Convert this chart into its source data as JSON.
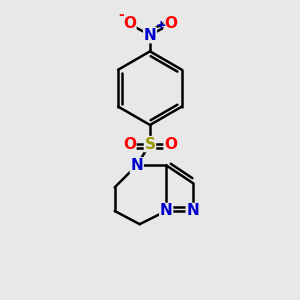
{
  "background_color": "#e8e8e8",
  "bond_color": "#000000",
  "bond_width": 1.8,
  "atom_colors": {
    "C": "#000000",
    "N": "#0000cc",
    "O": "#ff0000",
    "S": "#999900"
  },
  "font_size_atoms": 11,
  "figsize": [
    3.0,
    3.0
  ],
  "dpi": 100,
  "xlim": [
    0,
    10
  ],
  "ylim": [
    0,
    10
  ]
}
